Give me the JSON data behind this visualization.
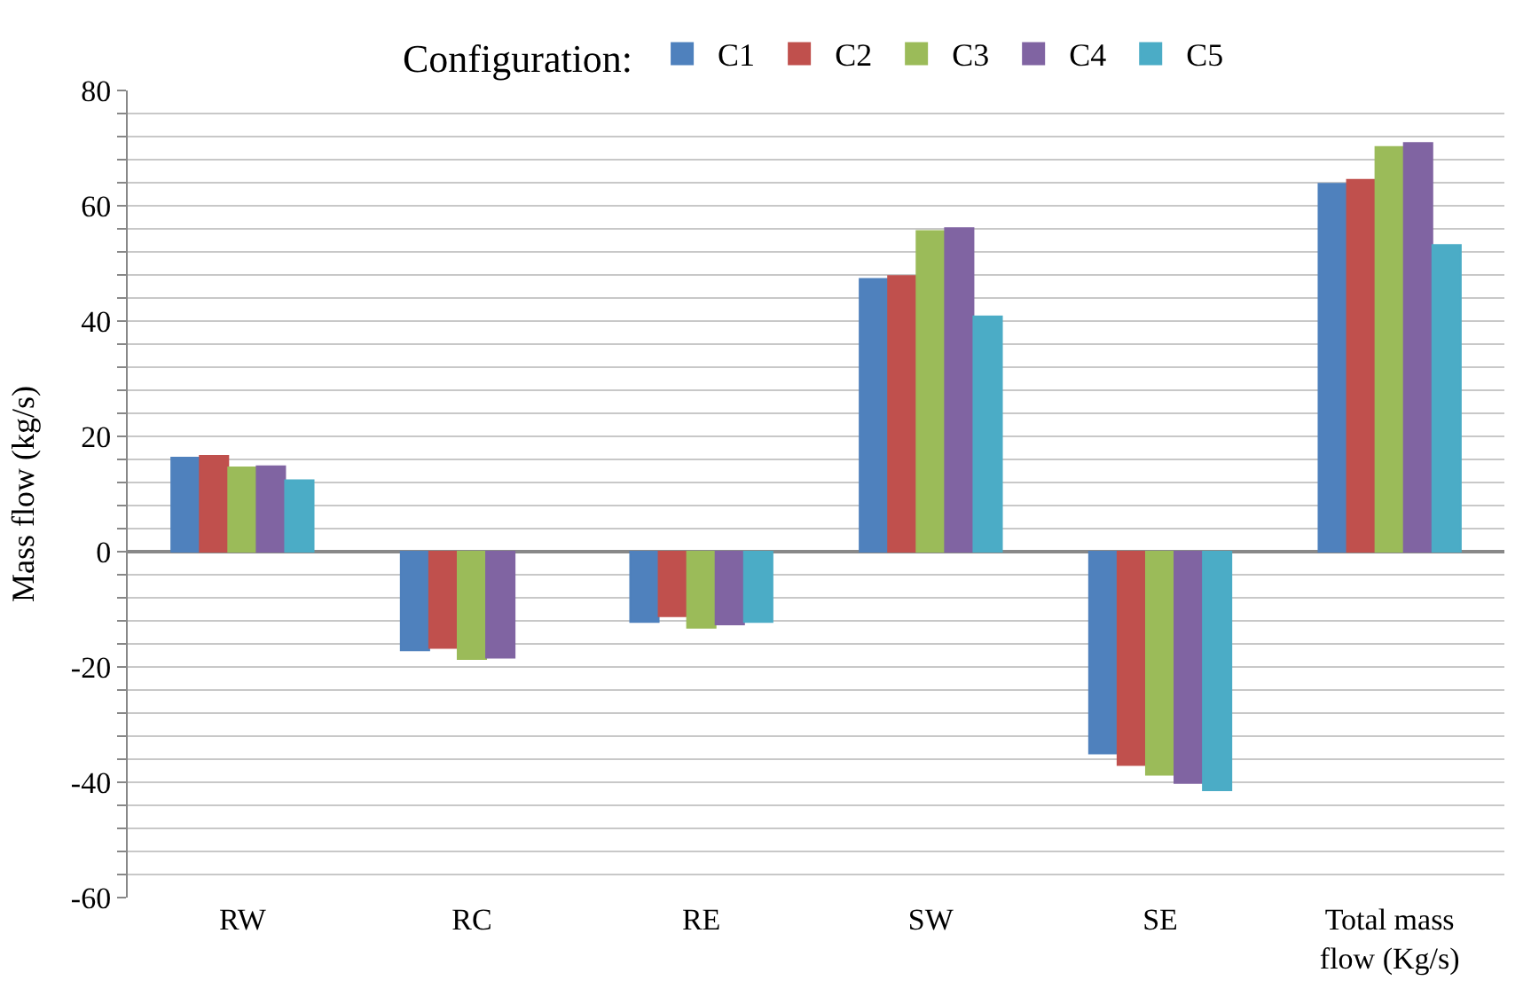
{
  "chart_data": {
    "type": "bar",
    "ylabel": "Mass flow (kg/s)",
    "legend_title": "Configuration:",
    "legend": "top",
    "categories": [
      "RW",
      "RC",
      "RE",
      "SW",
      "SE",
      "Total mass\nflow (Kg/s)"
    ],
    "series": [
      {
        "name": "C1",
        "color": "#4f81bd",
        "values": [
          16.3,
          -17.1,
          -12.2,
          47.3,
          -35.0,
          63.8
        ]
      },
      {
        "name": "C2",
        "color": "#c0504d",
        "values": [
          16.6,
          -16.7,
          -11.2,
          47.8,
          -37.0,
          64.5
        ]
      },
      {
        "name": "C3",
        "color": "#9bbb59",
        "values": [
          14.6,
          -18.6,
          -13.2,
          55.6,
          -38.7,
          70.2
        ]
      },
      {
        "name": "C4",
        "color": "#8064a2",
        "values": [
          14.8,
          -18.4,
          -12.6,
          56.1,
          -40.1,
          70.9
        ]
      },
      {
        "name": "C5",
        "color": "#4bacc6",
        "values": [
          12.4,
          null,
          -12.2,
          40.8,
          -41.4,
          53.2
        ]
      }
    ],
    "ylim": [
      -60,
      80
    ],
    "yticks": [
      -60,
      {
        "value": -56,
        "label": null
      },
      {
        "value": -52,
        "label": null
      },
      {
        "value": -48,
        "label": null
      },
      {
        "value": -44,
        "label": null
      },
      -40,
      {
        "value": -36,
        "label": null
      },
      {
        "value": -32,
        "label": null
      },
      {
        "value": -28,
        "label": null
      },
      {
        "value": -24,
        "label": null
      },
      -20,
      {
        "value": -16,
        "label": null
      },
      {
        "value": -12,
        "label": null
      },
      {
        "value": -8,
        "label": null
      },
      {
        "value": -4,
        "label": null
      },
      0,
      {
        "value": 4,
        "label": null
      },
      {
        "value": 8,
        "label": null
      },
      {
        "value": 12,
        "label": null
      },
      {
        "value": 16,
        "label": null
      },
      20,
      {
        "value": 24,
        "label": null
      },
      {
        "value": 28,
        "label": null
      },
      {
        "value": 32,
        "label": null
      },
      {
        "value": 36,
        "label": null
      },
      40,
      {
        "value": 44,
        "label": null
      },
      {
        "value": 48,
        "label": null
      },
      {
        "value": 52,
        "label": null
      },
      {
        "value": 56,
        "label": null
      },
      60,
      {
        "value": 64,
        "label": null
      },
      {
        "value": 68,
        "label": null
      },
      {
        "value": 72,
        "label": null
      },
      {
        "value": 76,
        "label": null
      },
      80
    ],
    "grid": "y"
  }
}
